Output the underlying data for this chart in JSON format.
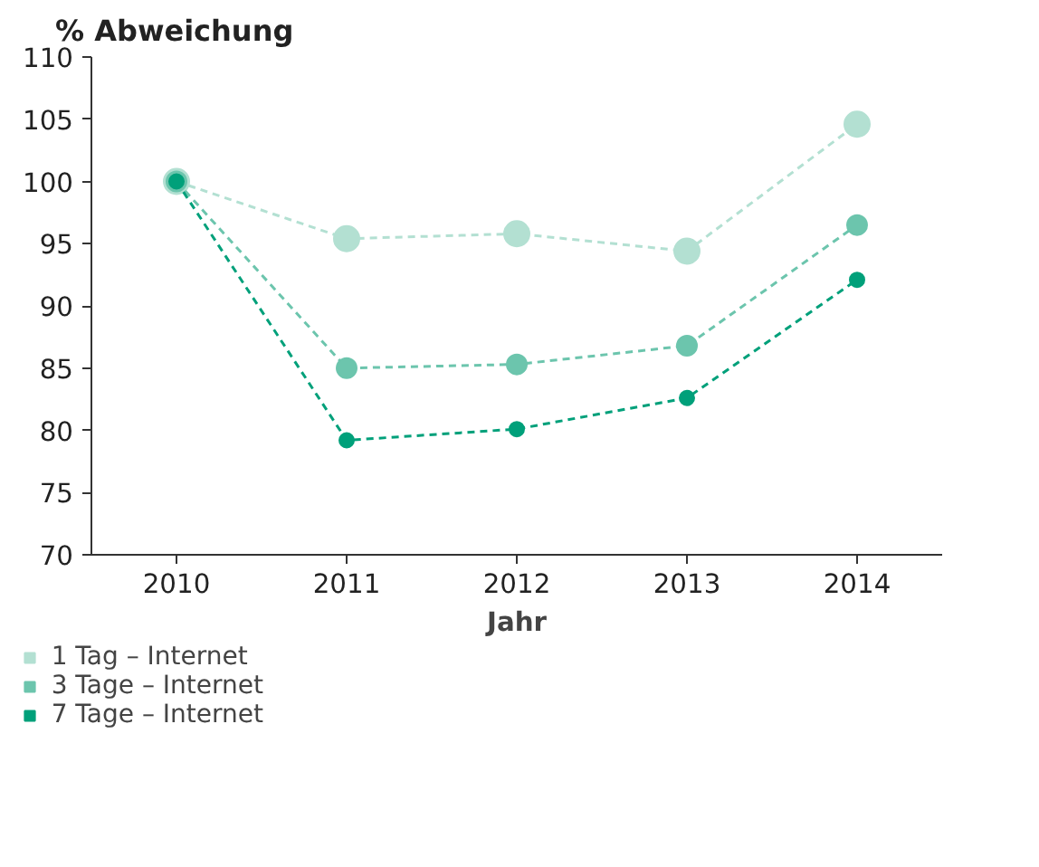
{
  "chart_data": {
    "type": "line",
    "ylabel": "% Abweichung",
    "xlabel": "Jahr",
    "categories": [
      "2010",
      "2011",
      "2012",
      "2013",
      "2014"
    ],
    "series": [
      {
        "name": "1 Tag – Internet",
        "color": "#b3e0d2",
        "values": [
          100,
          95.4,
          95.8,
          94.4,
          104.6
        ]
      },
      {
        "name": "3 Tage – Internet",
        "color": "#6cc5ad",
        "values": [
          100,
          85.0,
          85.3,
          86.8,
          96.5
        ]
      },
      {
        "name": "7 Tage – Internet",
        "color": "#00a07a",
        "values": [
          100,
          79.2,
          80.1,
          82.6,
          92.1
        ]
      }
    ],
    "ylim": [
      70,
      110
    ],
    "yticks": [
      70,
      75,
      80,
      85,
      90,
      95,
      100,
      105,
      110
    ],
    "grid": false,
    "legend": "bottom left",
    "marker": "circle",
    "line_style": "dashed"
  }
}
